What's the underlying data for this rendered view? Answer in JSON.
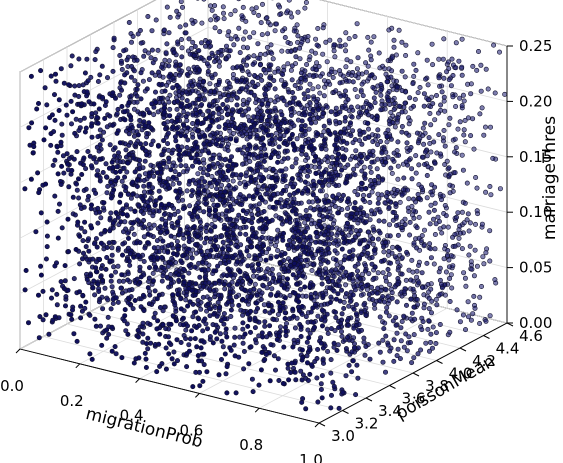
{
  "chart_data": {
    "type": "scatter",
    "title": "",
    "xlabel": "migrationProb",
    "ylabel": "poissonMean",
    "zlabel": "marriageThres",
    "x_ticks": [
      "0.0",
      "0.2",
      "0.4",
      "0.6",
      "0.8",
      "1.0"
    ],
    "y_ticks": [
      "3.0",
      "3.2",
      "3.4",
      "3.6",
      "3.8",
      "4.0",
      "4.2",
      "4.4",
      "4.6"
    ],
    "z_ticks": [
      "0.00",
      "0.05",
      "0.10",
      "0.15",
      "0.20",
      "0.25"
    ],
    "xlim": [
      0.0,
      1.0
    ],
    "ylim": [
      3.0,
      4.6
    ],
    "zlim": [
      0.0,
      0.25
    ],
    "grid": true,
    "point_count": 5000,
    "distribution": "uniform over the full x, y and z ranges",
    "point_color": "#1f1f5a"
  }
}
